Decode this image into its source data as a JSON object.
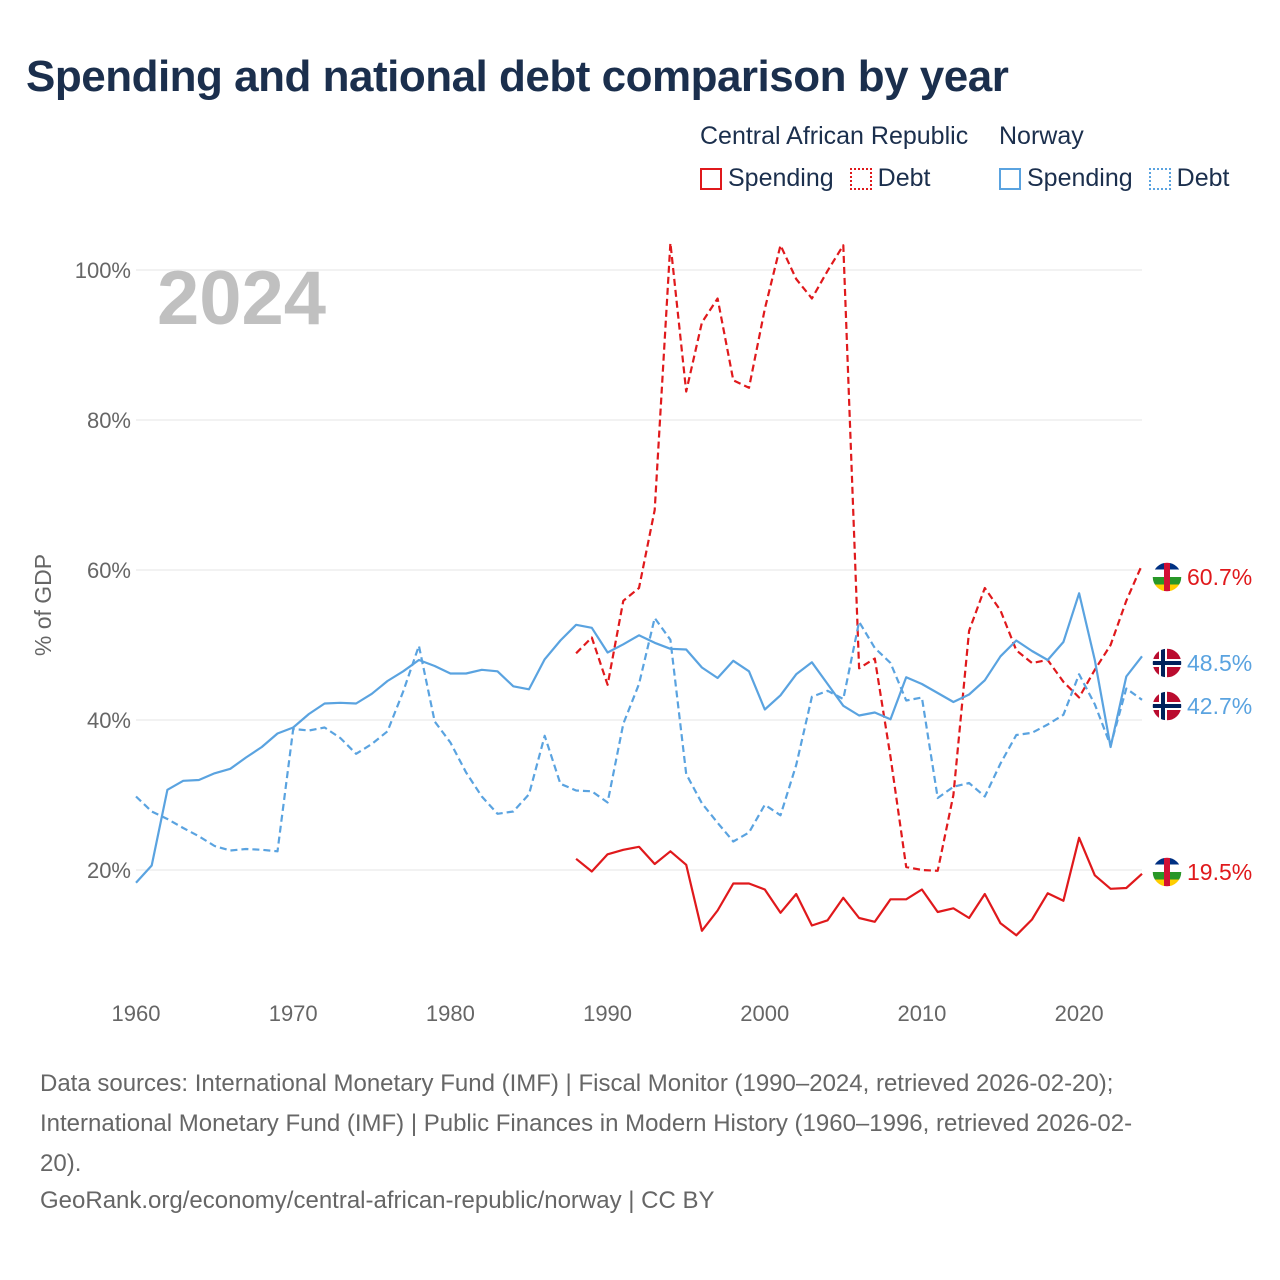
{
  "title": "Spending and national debt comparison by year",
  "legend": {
    "groups": [
      {
        "country": "Central African Republic",
        "items": [
          {
            "label": "Spending",
            "style": "solid"
          },
          {
            "label": "Debt",
            "style": "dotted"
          }
        ],
        "color": "#e0191c"
      },
      {
        "country": "Norway",
        "items": [
          {
            "label": "Spending",
            "style": "solid"
          },
          {
            "label": "Debt",
            "style": "dotted"
          }
        ],
        "color": "#5aa3e0"
      }
    ]
  },
  "year_watermark": "2024",
  "footer": {
    "sources_line1": "Data sources: International Monetary Fund (IMF) | Fiscal Monitor (1990–2024, retrieved 2026-02-20);",
    "sources_line2": "International Monetary Fund (IMF) | Public Finances in Modern History (1960–1996, retrieved 2026-02-",
    "sources_line3": "20).",
    "credit": "GeoRank.org/economy/central-african-republic/norway | CC BY"
  },
  "chart_data": {
    "type": "line",
    "title": "Spending and national debt comparison by year",
    "xlabel": "",
    "ylabel": "% of GDP",
    "xlim": [
      1960,
      2024
    ],
    "ylim": [
      8,
      106
    ],
    "x_ticks": [
      1960,
      1970,
      1980,
      1990,
      2000,
      2010,
      2020
    ],
    "y_ticks": [
      20,
      40,
      60,
      80,
      100
    ],
    "y_tick_labels": [
      "20%",
      "40%",
      "60%",
      "80%",
      "100%"
    ],
    "grid": true,
    "series": [
      {
        "name": "Central African Republic Spending",
        "country": "Central African Republic",
        "measure": "Spending",
        "color": "#e0191c",
        "dash": "solid",
        "end_label": "19.5%",
        "points": [
          [
            1988,
            21.5
          ],
          [
            1989,
            19.8
          ],
          [
            1990,
            22.1
          ],
          [
            1991,
            22.7
          ],
          [
            1992,
            23.1
          ],
          [
            1993,
            20.8
          ],
          [
            1994,
            22.5
          ],
          [
            1995,
            20.7
          ],
          [
            1996,
            11.9
          ],
          [
            1997,
            14.6
          ],
          [
            1998,
            18.2
          ],
          [
            1999,
            18.2
          ],
          [
            2000,
            17.4
          ],
          [
            2001,
            14.3
          ],
          [
            2002,
            16.8
          ],
          [
            2003,
            12.6
          ],
          [
            2004,
            13.3
          ],
          [
            2005,
            16.3
          ],
          [
            2006,
            13.6
          ],
          [
            2007,
            13.1
          ],
          [
            2008,
            16.1
          ],
          [
            2009,
            16.1
          ],
          [
            2010,
            17.4
          ],
          [
            2011,
            14.4
          ],
          [
            2012,
            14.9
          ],
          [
            2013,
            13.6
          ],
          [
            2014,
            16.8
          ],
          [
            2015,
            12.9
          ],
          [
            2016,
            11.3
          ],
          [
            2017,
            13.4
          ],
          [
            2018,
            16.9
          ],
          [
            2019,
            15.9
          ],
          [
            2020,
            24.3
          ],
          [
            2021,
            19.3
          ],
          [
            2022,
            17.5
          ],
          [
            2023,
            17.6
          ],
          [
            2024,
            19.5
          ]
        ]
      },
      {
        "name": "Central African Republic Debt",
        "country": "Central African Republic",
        "measure": "Debt",
        "color": "#e0191c",
        "dash": "dotted",
        "end_label": "60.7%",
        "points": [
          [
            1988,
            48.9
          ],
          [
            1989,
            51.0
          ],
          [
            1990,
            44.7
          ],
          [
            1991,
            55.9
          ],
          [
            1992,
            57.6
          ],
          [
            1993,
            68.0
          ],
          [
            1994,
            103.6
          ],
          [
            1995,
            83.8
          ],
          [
            1996,
            93.0
          ],
          [
            1997,
            96.2
          ],
          [
            1998,
            85.3
          ],
          [
            1999,
            84.3
          ],
          [
            2000,
            94.8
          ],
          [
            2001,
            103.3
          ],
          [
            2002,
            98.8
          ],
          [
            2003,
            96.2
          ],
          [
            2004,
            99.9
          ],
          [
            2005,
            103.3
          ],
          [
            2006,
            46.9
          ],
          [
            2007,
            48.2
          ],
          [
            2008,
            35.1
          ],
          [
            2009,
            20.4
          ],
          [
            2010,
            20.0
          ],
          [
            2011,
            19.9
          ],
          [
            2012,
            30.0
          ],
          [
            2013,
            51.9
          ],
          [
            2014,
            57.6
          ],
          [
            2015,
            54.6
          ],
          [
            2016,
            49.3
          ],
          [
            2017,
            47.6
          ],
          [
            2018,
            48.0
          ],
          [
            2019,
            45.1
          ],
          [
            2020,
            43.0
          ],
          [
            2021,
            46.7
          ],
          [
            2022,
            50.0
          ],
          [
            2023,
            55.9
          ],
          [
            2024,
            60.7
          ]
        ]
      },
      {
        "name": "Norway Spending",
        "country": "Norway",
        "measure": "Spending",
        "color": "#5aa3e0",
        "dash": "solid",
        "end_label": "48.5%",
        "points": [
          [
            1960,
            18.3
          ],
          [
            1961,
            20.6
          ],
          [
            1962,
            30.7
          ],
          [
            1963,
            31.9
          ],
          [
            1964,
            32.0
          ],
          [
            1965,
            32.9
          ],
          [
            1966,
            33.5
          ],
          [
            1967,
            35.0
          ],
          [
            1968,
            36.4
          ],
          [
            1969,
            38.2
          ],
          [
            1970,
            39.0
          ],
          [
            1971,
            40.8
          ],
          [
            1972,
            42.2
          ],
          [
            1973,
            42.3
          ],
          [
            1974,
            42.2
          ],
          [
            1975,
            43.5
          ],
          [
            1976,
            45.2
          ],
          [
            1977,
            46.5
          ],
          [
            1978,
            48.0
          ],
          [
            1979,
            47.2
          ],
          [
            1980,
            46.2
          ],
          [
            1981,
            46.2
          ],
          [
            1982,
            46.7
          ],
          [
            1983,
            46.5
          ],
          [
            1984,
            44.5
          ],
          [
            1985,
            44.1
          ],
          [
            1986,
            48.1
          ],
          [
            1987,
            50.6
          ],
          [
            1988,
            52.7
          ],
          [
            1989,
            52.3
          ],
          [
            1990,
            49.0
          ],
          [
            1991,
            50.1
          ],
          [
            1992,
            51.3
          ],
          [
            1993,
            50.3
          ],
          [
            1994,
            49.5
          ],
          [
            1995,
            49.4
          ],
          [
            1996,
            47.0
          ],
          [
            1997,
            45.6
          ],
          [
            1998,
            47.9
          ],
          [
            1999,
            46.5
          ],
          [
            2000,
            41.4
          ],
          [
            2001,
            43.3
          ],
          [
            2002,
            46.1
          ],
          [
            2003,
            47.7
          ],
          [
            2004,
            44.8
          ],
          [
            2005,
            41.9
          ],
          [
            2006,
            40.6
          ],
          [
            2007,
            41.0
          ],
          [
            2008,
            40.1
          ],
          [
            2009,
            45.7
          ],
          [
            2010,
            44.8
          ],
          [
            2011,
            43.6
          ],
          [
            2012,
            42.4
          ],
          [
            2013,
            43.4
          ],
          [
            2014,
            45.3
          ],
          [
            2015,
            48.5
          ],
          [
            2016,
            50.6
          ],
          [
            2017,
            49.2
          ],
          [
            2018,
            48.0
          ],
          [
            2019,
            50.4
          ],
          [
            2020,
            56.9
          ],
          [
            2021,
            48.0
          ],
          [
            2022,
            36.4
          ],
          [
            2023,
            45.8
          ],
          [
            2024,
            48.5
          ]
        ]
      },
      {
        "name": "Norway Debt",
        "country": "Norway",
        "measure": "Debt",
        "color": "#5aa3e0",
        "dash": "dotted",
        "end_label": "42.7%",
        "points": [
          [
            1960,
            29.8
          ],
          [
            1961,
            27.8
          ],
          [
            1962,
            26.8
          ],
          [
            1963,
            25.6
          ],
          [
            1964,
            24.5
          ],
          [
            1965,
            23.2
          ],
          [
            1966,
            22.6
          ],
          [
            1967,
            22.8
          ],
          [
            1968,
            22.7
          ],
          [
            1969,
            22.5
          ],
          [
            1970,
            38.8
          ],
          [
            1971,
            38.6
          ],
          [
            1972,
            39.0
          ],
          [
            1973,
            37.6
          ],
          [
            1974,
            35.5
          ],
          [
            1975,
            36.8
          ],
          [
            1976,
            38.5
          ],
          [
            1977,
            43.8
          ],
          [
            1978,
            49.9
          ],
          [
            1979,
            39.8
          ],
          [
            1980,
            37.0
          ],
          [
            1981,
            33.0
          ],
          [
            1982,
            29.8
          ],
          [
            1983,
            27.5
          ],
          [
            1984,
            27.8
          ],
          [
            1985,
            30.1
          ],
          [
            1986,
            37.9
          ],
          [
            1987,
            31.5
          ],
          [
            1988,
            30.6
          ],
          [
            1989,
            30.5
          ],
          [
            1990,
            29.0
          ],
          [
            1991,
            39.5
          ],
          [
            1992,
            44.8
          ],
          [
            1993,
            53.6
          ],
          [
            1994,
            50.7
          ],
          [
            1995,
            32.8
          ],
          [
            1996,
            28.9
          ],
          [
            1997,
            26.3
          ],
          [
            1998,
            23.8
          ],
          [
            1999,
            25.0
          ],
          [
            2000,
            28.7
          ],
          [
            2001,
            27.3
          ],
          [
            2002,
            34.0
          ],
          [
            2003,
            43.1
          ],
          [
            2004,
            43.9
          ],
          [
            2005,
            42.8
          ],
          [
            2006,
            53.1
          ],
          [
            2007,
            49.6
          ],
          [
            2008,
            47.6
          ],
          [
            2009,
            42.6
          ],
          [
            2010,
            43.0
          ],
          [
            2011,
            29.6
          ],
          [
            2012,
            31.1
          ],
          [
            2013,
            31.6
          ],
          [
            2014,
            29.8
          ],
          [
            2015,
            34.2
          ],
          [
            2016,
            38.0
          ],
          [
            2017,
            38.3
          ],
          [
            2018,
            39.4
          ],
          [
            2019,
            40.7
          ],
          [
            2020,
            46.1
          ],
          [
            2021,
            42.1
          ],
          [
            2022,
            36.6
          ],
          [
            2023,
            44.2
          ],
          [
            2024,
            42.7
          ]
        ]
      }
    ]
  }
}
